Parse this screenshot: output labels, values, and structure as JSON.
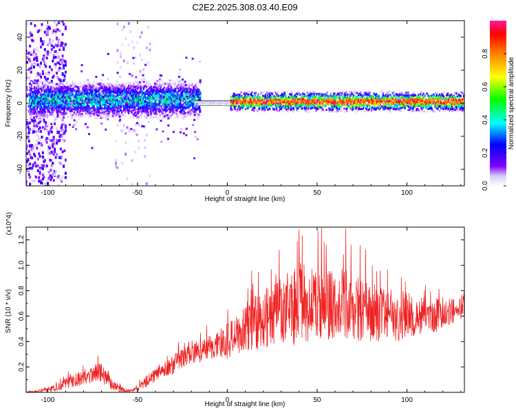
{
  "figure_title": "C2E2.2025.308.03.40.E09",
  "chart_data": [
    {
      "type": "heatmap",
      "title": "C2E2.2025.308.03.40.E09",
      "xlabel": "Height of straight line (km)",
      "ylabel": "Frequency (Hz)",
      "xlim": [
        -112,
        132
      ],
      "ylim": [
        -50,
        50
      ],
      "xticks": [
        -100,
        -50,
        0,
        50,
        100
      ],
      "yticks": [
        -40,
        -20,
        0,
        20,
        40
      ],
      "colorbar": {
        "label": "Normalized spectral amplitude",
        "range": [
          0.0,
          1.0
        ],
        "ticks": [
          0.0,
          0.2,
          0.4,
          0.6,
          0.8
        ],
        "tick_labels": [
          "0.0",
          "0.2",
          "0.4",
          "0.6",
          "0.8"
        ],
        "colormap": [
          "#ffffff",
          "#6a00e0",
          "#0000ff",
          "#00ffff",
          "#00ff00",
          "#ffff00",
          "#ff8000",
          "#ff0000",
          "#ff1aa0"
        ]
      },
      "features": [
        {
          "name": "noisy broadband",
          "x_range": [
            -112,
            -90
          ],
          "freq_range": [
            -50,
            50
          ],
          "amplitude": 0.12
        },
        {
          "name": "speckle band",
          "x_range": [
            -62,
            -43
          ],
          "freq_range": [
            -50,
            50
          ],
          "amplitude": 0.05
        },
        {
          "name": "main band",
          "x_range": [
            -110,
            -15
          ],
          "center_freq": 2,
          "half_width_hz": 6,
          "amplitude": 0.38
        },
        {
          "name": "narrow line",
          "x_range": [
            -18,
            5
          ],
          "center_freq": 0,
          "half_width_hz": 1,
          "amplitude": 0.05
        },
        {
          "name": "strong line",
          "x_range": [
            2,
            132
          ],
          "center_freq": 1,
          "half_width_hz": 3,
          "amplitude": 0.85
        }
      ]
    },
    {
      "type": "line",
      "xlabel": "Height of straight line (km)",
      "ylabel": "SNR (10 * v/v)",
      "y_scale_label": "(x10^4)",
      "xlim": [
        -112,
        132
      ],
      "ylim": [
        0,
        1.3
      ],
      "xticks": [
        -100,
        -50,
        0,
        50,
        100
      ],
      "yticks": [
        0.2,
        0.4,
        0.6,
        0.8,
        1.0,
        1.2
      ],
      "ytick_labels": [
        "0.2",
        "0.4",
        "0.6",
        "0.8",
        "1.0",
        "1.2"
      ],
      "series": [
        {
          "name": "SNR",
          "color": "#ee2222",
          "x": [
            -112,
            -105,
            -100,
            -95,
            -90,
            -85,
            -80,
            -75,
            -72,
            -70,
            -68,
            -65,
            -62,
            -58,
            -55,
            -50,
            -47,
            -44,
            -40,
            -36,
            -32,
            -28,
            -25,
            -22,
            -20,
            -15,
            -10,
            -5,
            0,
            5,
            10,
            15,
            20,
            25,
            30,
            35,
            40,
            45,
            50,
            55,
            60,
            65,
            70,
            75,
            80,
            85,
            90,
            95,
            100,
            105,
            110,
            115,
            120,
            125,
            130,
            132
          ],
          "values": [
            0.0,
            0.01,
            0.02,
            0.04,
            0.07,
            0.1,
            0.12,
            0.14,
            0.16,
            0.15,
            0.12,
            0.07,
            0.04,
            0.02,
            0.01,
            0.03,
            0.06,
            0.1,
            0.13,
            0.17,
            0.2,
            0.24,
            0.27,
            0.3,
            0.32,
            0.33,
            0.35,
            0.38,
            0.4,
            0.44,
            0.5,
            0.55,
            0.58,
            0.6,
            0.62,
            0.66,
            0.7,
            0.7,
            0.72,
            0.7,
            0.69,
            0.7,
            0.66,
            0.65,
            0.62,
            0.62,
            0.61,
            0.6,
            0.62,
            0.6,
            0.62,
            0.6,
            0.63,
            0.64,
            0.67,
            0.7
          ],
          "spread": [
            0.0,
            0.01,
            0.02,
            0.03,
            0.04,
            0.06,
            0.06,
            0.07,
            0.08,
            0.08,
            0.07,
            0.05,
            0.03,
            0.02,
            0.01,
            0.02,
            0.04,
            0.05,
            0.06,
            0.06,
            0.07,
            0.08,
            0.08,
            0.09,
            0.09,
            0.1,
            0.11,
            0.12,
            0.14,
            0.16,
            0.2,
            0.22,
            0.24,
            0.26,
            0.28,
            0.3,
            0.32,
            0.3,
            0.3,
            0.3,
            0.28,
            0.28,
            0.26,
            0.26,
            0.24,
            0.22,
            0.2,
            0.2,
            0.18,
            0.16,
            0.15,
            0.14,
            0.12,
            0.1,
            0.1,
            0.1
          ],
          "peaks": [
            {
              "x": -72,
              "y": 0.29
            },
            {
              "x": 27,
              "y": 0.93
            },
            {
              "x": 40,
              "y": 1.28
            },
            {
              "x": 66,
              "y": 1.29
            }
          ]
        }
      ]
    }
  ]
}
